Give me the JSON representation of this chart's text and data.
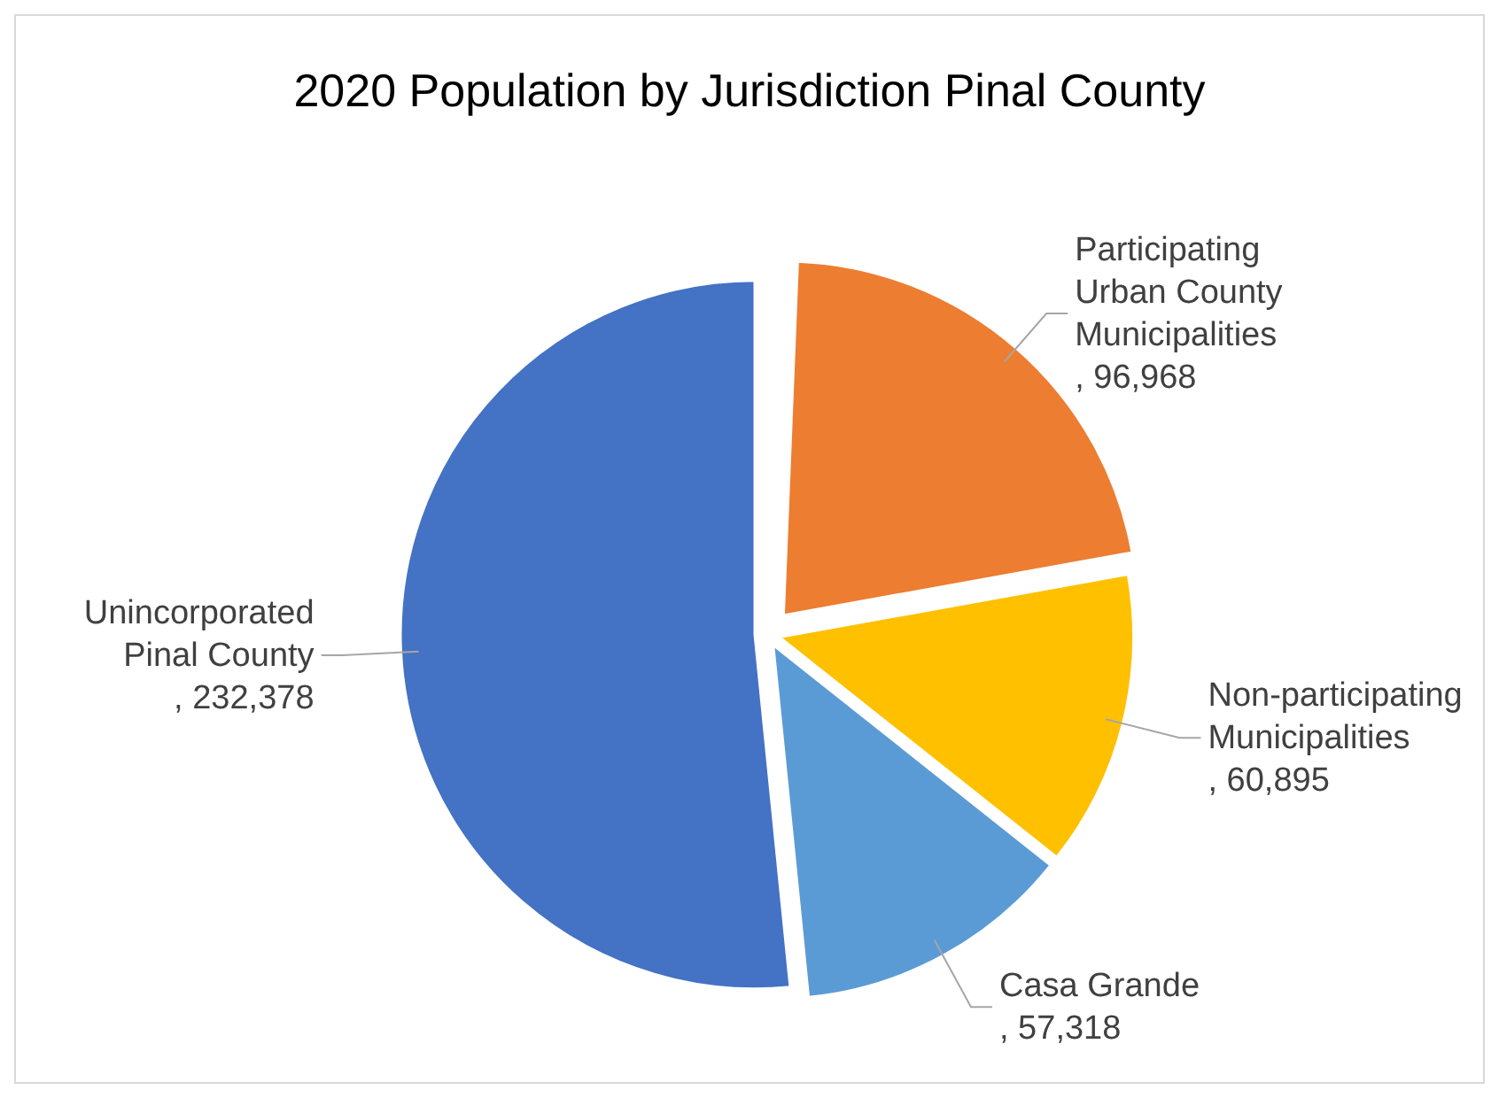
{
  "chart_data": {
    "type": "pie",
    "title": "2020 Population by Jurisdiction Pinal County",
    "categories": [
      "Participating Urban County Municipalities",
      "Non-participating Municipalities",
      "Casa Grande",
      "Unincorporated Pinal County"
    ],
    "values": [
      96968,
      60895,
      57318,
      232378
    ],
    "value_labels": [
      ", 96,968",
      ", 60,895",
      ", 57,318",
      ", 232,378"
    ],
    "colors": [
      "#ed7d31",
      "#ffc000",
      "#5b9bd5",
      "#4472c4"
    ]
  }
}
